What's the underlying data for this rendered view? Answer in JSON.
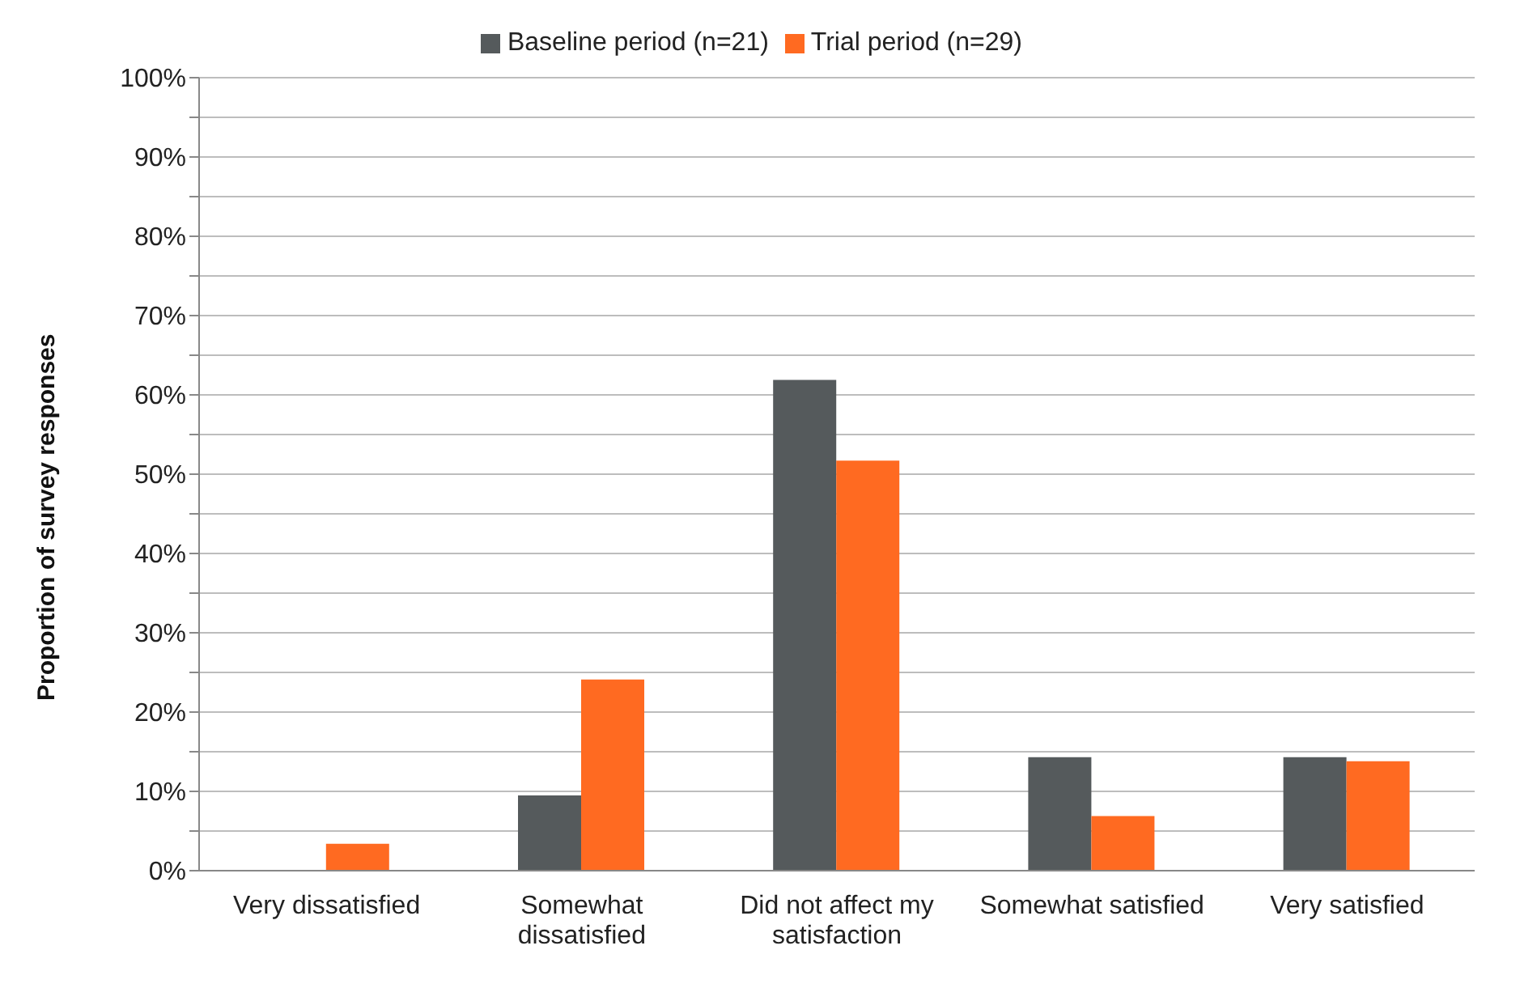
{
  "chart_data": {
    "type": "bar",
    "ylabel": "Proportion of survey responses",
    "categories": [
      "Very dissatisfied",
      "Somewhat dissatisfied",
      "Did not affect my satisfaction",
      "Somewhat satisfied",
      "Very satisfied"
    ],
    "series": [
      {
        "name": "Baseline period (n=21)",
        "color": "#555a5c",
        "values": [
          0,
          9.5,
          61.9,
          14.3,
          14.3
        ]
      },
      {
        "name": "Trial period (n=29)",
        "color": "#ff6a21",
        "values": [
          3.4,
          24.1,
          51.7,
          6.9,
          13.8
        ]
      }
    ],
    "ylim": [
      0,
      100
    ],
    "yticks": [
      {
        "value": 0,
        "label": "0%"
      },
      {
        "value": 5,
        "label": null
      },
      {
        "value": 10,
        "label": "10%"
      },
      {
        "value": 15,
        "label": null
      },
      {
        "value": 20,
        "label": "20%"
      },
      {
        "value": 25,
        "label": null
      },
      {
        "value": 30,
        "label": "30%"
      },
      {
        "value": 35,
        "label": null
      },
      {
        "value": 40,
        "label": "40%"
      },
      {
        "value": 45,
        "label": null
      },
      {
        "value": 50,
        "label": "50%"
      },
      {
        "value": 55,
        "label": null
      },
      {
        "value": 60,
        "label": "60%"
      },
      {
        "value": 65,
        "label": null
      },
      {
        "value": 70,
        "label": "70%"
      },
      {
        "value": 75,
        "label": null
      },
      {
        "value": 80,
        "label": "80%"
      },
      {
        "value": 85,
        "label": null
      },
      {
        "value": 90,
        "label": "90%"
      },
      {
        "value": 95,
        "label": null
      },
      {
        "value": 100,
        "label": "100%"
      }
    ],
    "grid": "y",
    "legend": "top"
  }
}
